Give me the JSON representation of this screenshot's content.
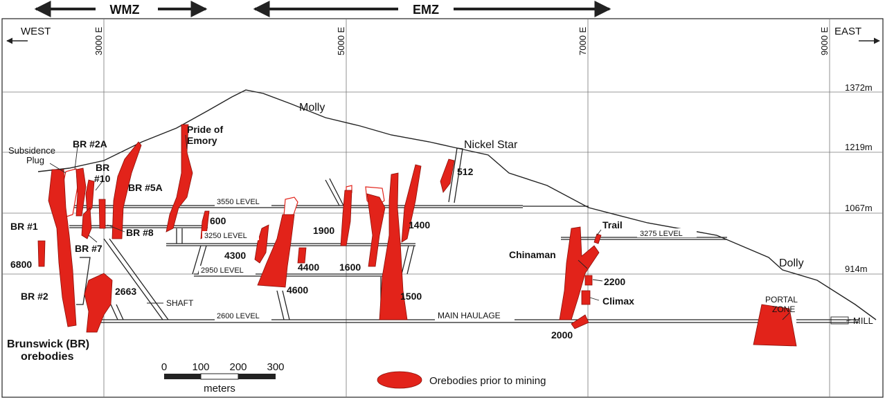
{
  "zones": {
    "wmz": "WMZ",
    "emz": "EMZ"
  },
  "directions": {
    "west": "WEST",
    "east": "EAST"
  },
  "eastings": [
    "3000 E",
    "5000 E",
    "7000 E",
    "9000 E"
  ],
  "elevations": [
    "1372m",
    "1219m",
    "1067m",
    "914m"
  ],
  "peaks": {
    "molly": "Molly",
    "nickel_star": "Nickel Star",
    "dolly": "Dolly",
    "pride_of_emory_1": "Pride of",
    "pride_of_emory_2": "Emory"
  },
  "levels": {
    "l3550": "3550 LEVEL",
    "l3250": "3250 LEVEL",
    "l2950": "2950 LEVEL",
    "l2600": "2600 LEVEL",
    "l3275": "3275 LEVEL",
    "main_haulage": "MAIN HAULAGE",
    "shaft": "SHAFT",
    "portal_1": "PORTAL",
    "portal_2": "ZONE",
    "mill": "MILL"
  },
  "subsidence": {
    "line1": "Subsidence",
    "line2": "Plug"
  },
  "orebodies": {
    "br2a": "BR #2A",
    "br10a": "BR",
    "br10b": "#10",
    "br5a": "BR #5A",
    "br1": "BR #1",
    "br8": "BR #8",
    "br7": "BR #7",
    "ob6800": "6800",
    "br2": "BR #2",
    "ob2663": "2663",
    "ob600": "600",
    "ob4300": "4300",
    "ob4400": "4400",
    "ob4600": "4600",
    "ob1900": "1900",
    "ob1600": "1600",
    "ob1500": "1500",
    "ob1400": "1400",
    "ob512": "512",
    "trail": "Trail",
    "chinaman": "Chinaman",
    "ob2200": "2200",
    "climax": "Climax",
    "ob2000": "2000"
  },
  "group_label": {
    "line1": "Brunswick (BR)",
    "line2": "orebodies"
  },
  "scale": {
    "ticks": [
      "0",
      "100",
      "200",
      "300"
    ],
    "unit": "meters"
  },
  "legend": {
    "label": "Orebodies prior to mining"
  },
  "colors": {
    "ore": "#e2231a"
  }
}
